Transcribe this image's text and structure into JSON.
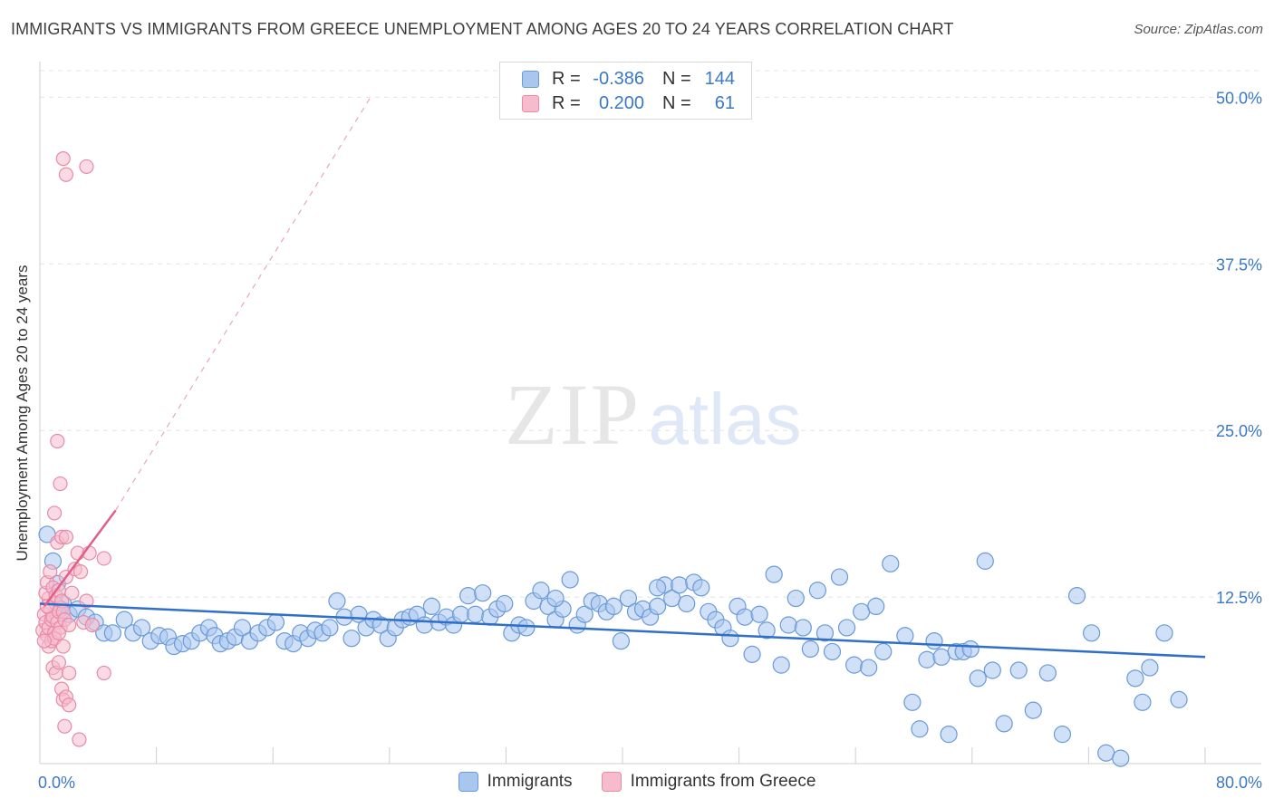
{
  "header": {
    "title": "IMMIGRANTS VS IMMIGRANTS FROM GREECE UNEMPLOYMENT AMONG AGES 20 TO 24 YEARS CORRELATION CHART",
    "source": "Source: ZipAtlas.com"
  },
  "watermark": {
    "zip": "ZIP",
    "atlas": "atlas"
  },
  "legend": {
    "rows": [
      {
        "r_label": "R =",
        "r_value": "-0.386",
        "n_label": "N =",
        "n_value": "144",
        "color": "#a9c6ef",
        "stroke": "#6a9ad8"
      },
      {
        "r_label": "R =",
        "r_value": "0.200",
        "n_label": "N =",
        "n_value": "61",
        "color": "#f6bccd",
        "stroke": "#e98aa6"
      }
    ]
  },
  "bottom_legend": {
    "items": [
      {
        "label": "Immigrants",
        "color": "#a9c6ef",
        "stroke": "#6a9ad8"
      },
      {
        "label": "Immigrants from Greece",
        "color": "#f6bccd",
        "stroke": "#e98aa6"
      }
    ]
  },
  "chart_data": {
    "type": "scatter",
    "title": "IMMIGRANTS VS IMMIGRANTS FROM GREECE UNEMPLOYMENT AMONG AGES 20 TO 24 YEARS CORRELATION CHART",
    "xlabel": "",
    "ylabel": "Unemployment Among Ages 20 to 24 years",
    "xlim": [
      0,
      80
    ],
    "ylim": [
      0,
      52
    ],
    "x_tick_labels": [
      {
        "value": 0,
        "label": "0.0%"
      },
      {
        "value": 80,
        "label": "80.0%"
      }
    ],
    "y_tick_labels": [
      {
        "value": 12.5,
        "label": "12.5%"
      },
      {
        "value": 25,
        "label": "25.0%"
      },
      {
        "value": 37.5,
        "label": "37.5%"
      },
      {
        "value": 50,
        "label": "50.0%"
      }
    ],
    "x_minor_ticks": [
      8,
      16,
      24,
      32,
      40,
      48,
      56,
      64,
      72,
      80
    ],
    "grid": true,
    "series": [
      {
        "name": "Immigrants",
        "color": "#a9c6ef",
        "stroke": "#6a9ad8",
        "trend": {
          "x": [
            0,
            80
          ],
          "y": [
            12.0,
            8.0
          ],
          "color": "#2f6fc9"
        },
        "points": [
          [
            0.5,
            17.2
          ],
          [
            0.9,
            15.2
          ],
          [
            1.2,
            13.5
          ],
          [
            1.6,
            12.0
          ],
          [
            1.4,
            11.6
          ],
          [
            2.0,
            11.2
          ],
          [
            2.6,
            11.6
          ],
          [
            3.2,
            11.0
          ],
          [
            3.8,
            10.6
          ],
          [
            4.4,
            9.8
          ],
          [
            5.0,
            9.8
          ],
          [
            5.8,
            10.8
          ],
          [
            6.4,
            9.8
          ],
          [
            7.0,
            10.2
          ],
          [
            7.6,
            9.2
          ],
          [
            8.2,
            9.6
          ],
          [
            8.8,
            9.5
          ],
          [
            9.2,
            8.8
          ],
          [
            9.8,
            9.0
          ],
          [
            10.4,
            9.2
          ],
          [
            11.0,
            9.8
          ],
          [
            11.6,
            10.2
          ],
          [
            12.0,
            9.6
          ],
          [
            12.4,
            9.0
          ],
          [
            12.9,
            9.2
          ],
          [
            13.4,
            9.5
          ],
          [
            13.9,
            10.2
          ],
          [
            14.4,
            9.2
          ],
          [
            15.0,
            9.8
          ],
          [
            15.6,
            10.2
          ],
          [
            16.2,
            10.6
          ],
          [
            16.8,
            9.2
          ],
          [
            17.4,
            9.0
          ],
          [
            17.9,
            9.8
          ],
          [
            18.4,
            9.4
          ],
          [
            18.9,
            10.0
          ],
          [
            19.4,
            9.8
          ],
          [
            19.9,
            10.2
          ],
          [
            20.4,
            12.2
          ],
          [
            20.9,
            11.0
          ],
          [
            21.4,
            9.4
          ],
          [
            21.9,
            11.2
          ],
          [
            22.4,
            10.2
          ],
          [
            22.9,
            10.8
          ],
          [
            23.4,
            10.4
          ],
          [
            23.9,
            9.4
          ],
          [
            24.4,
            10.2
          ],
          [
            24.9,
            10.8
          ],
          [
            25.4,
            11.0
          ],
          [
            25.9,
            11.2
          ],
          [
            26.4,
            10.4
          ],
          [
            26.9,
            11.8
          ],
          [
            27.4,
            10.6
          ],
          [
            27.9,
            11.0
          ],
          [
            28.4,
            10.4
          ],
          [
            28.9,
            11.2
          ],
          [
            29.4,
            12.6
          ],
          [
            29.9,
            11.2
          ],
          [
            30.4,
            12.8
          ],
          [
            30.9,
            11.0
          ],
          [
            31.4,
            11.6
          ],
          [
            31.9,
            12.0
          ],
          [
            32.4,
            9.8
          ],
          [
            32.9,
            10.4
          ],
          [
            33.4,
            10.2
          ],
          [
            33.9,
            12.2
          ],
          [
            34.4,
            13.0
          ],
          [
            34.9,
            11.8
          ],
          [
            35.4,
            10.8
          ],
          [
            35.9,
            11.6
          ],
          [
            36.4,
            13.8
          ],
          [
            36.9,
            10.4
          ],
          [
            37.4,
            11.2
          ],
          [
            37.9,
            12.2
          ],
          [
            38.4,
            12.0
          ],
          [
            38.9,
            11.4
          ],
          [
            39.4,
            11.8
          ],
          [
            39.9,
            9.2
          ],
          [
            40.4,
            12.4
          ],
          [
            40.9,
            11.4
          ],
          [
            41.4,
            11.6
          ],
          [
            41.9,
            11.0
          ],
          [
            42.4,
            11.8
          ],
          [
            42.9,
            13.4
          ],
          [
            43.4,
            12.4
          ],
          [
            43.9,
            13.4
          ],
          [
            44.4,
            12.0
          ],
          [
            44.9,
            13.6
          ],
          [
            45.4,
            13.2
          ],
          [
            45.9,
            11.4
          ],
          [
            46.4,
            10.8
          ],
          [
            46.9,
            10.2
          ],
          [
            47.4,
            9.4
          ],
          [
            47.9,
            11.8
          ],
          [
            48.4,
            11.0
          ],
          [
            48.9,
            8.2
          ],
          [
            49.4,
            11.2
          ],
          [
            49.9,
            10.0
          ],
          [
            50.4,
            14.2
          ],
          [
            50.9,
            7.4
          ],
          [
            51.4,
            10.4
          ],
          [
            51.9,
            12.4
          ],
          [
            52.4,
            10.2
          ],
          [
            52.9,
            8.6
          ],
          [
            53.4,
            13.0
          ],
          [
            53.9,
            9.8
          ],
          [
            54.4,
            8.4
          ],
          [
            54.9,
            14.0
          ],
          [
            55.4,
            10.2
          ],
          [
            55.9,
            7.4
          ],
          [
            56.4,
            11.4
          ],
          [
            56.9,
            7.2
          ],
          [
            57.4,
            11.8
          ],
          [
            57.9,
            8.4
          ],
          [
            58.4,
            15.0
          ],
          [
            59.4,
            9.6
          ],
          [
            59.9,
            4.6
          ],
          [
            60.4,
            2.6
          ],
          [
            60.9,
            7.8
          ],
          [
            61.4,
            9.2
          ],
          [
            61.9,
            8.0
          ],
          [
            62.4,
            2.2
          ],
          [
            62.9,
            8.4
          ],
          [
            63.4,
            8.4
          ],
          [
            64.4,
            6.4
          ],
          [
            64.9,
            15.2
          ],
          [
            65.4,
            7.0
          ],
          [
            66.2,
            3.0
          ],
          [
            67.2,
            7.0
          ],
          [
            68.2,
            4.0
          ],
          [
            69.2,
            6.8
          ],
          [
            70.2,
            2.2
          ],
          [
            71.2,
            12.6
          ],
          [
            72.2,
            9.8
          ],
          [
            73.2,
            0.8
          ],
          [
            74.2,
            0.4
          ],
          [
            75.2,
            6.4
          ],
          [
            75.7,
            4.6
          ],
          [
            76.2,
            7.2
          ],
          [
            77.2,
            9.8
          ],
          [
            78.2,
            4.8
          ],
          [
            63.9,
            8.6
          ],
          [
            42.4,
            13.2
          ],
          [
            35.4,
            12.4
          ]
        ]
      },
      {
        "name": "Immigrants from Greece",
        "color": "#f6bccd",
        "stroke": "#e98aa6",
        "trend": {
          "x": [
            0.3,
            5.2
          ],
          "y": [
            11.8,
            19.0
          ],
          "color": "#e0608a",
          "extend_to": [
            22.7,
            50.0
          ]
        },
        "points": [
          [
            0.2,
            10.0
          ],
          [
            0.3,
            11.2
          ],
          [
            0.4,
            10.6
          ],
          [
            0.5,
            9.6
          ],
          [
            0.6,
            12.4
          ],
          [
            0.6,
            10.2
          ],
          [
            0.7,
            11.6
          ],
          [
            0.8,
            10.8
          ],
          [
            0.9,
            11.0
          ],
          [
            1.0,
            9.8
          ],
          [
            1.1,
            12.0
          ],
          [
            1.2,
            10.6
          ],
          [
            1.3,
            11.4
          ],
          [
            1.4,
            10.2
          ],
          [
            0.4,
            12.8
          ],
          [
            0.5,
            13.6
          ],
          [
            0.7,
            14.4
          ],
          [
            0.9,
            13.2
          ],
          [
            1.1,
            12.6
          ],
          [
            1.3,
            13.0
          ],
          [
            1.5,
            12.2
          ],
          [
            1.6,
            11.4
          ],
          [
            1.7,
            10.8
          ],
          [
            1.8,
            14.0
          ],
          [
            2.0,
            10.4
          ],
          [
            2.2,
            12.8
          ],
          [
            2.4,
            14.6
          ],
          [
            2.6,
            15.8
          ],
          [
            2.8,
            14.4
          ],
          [
            3.0,
            10.6
          ],
          [
            3.2,
            12.2
          ],
          [
            3.4,
            15.8
          ],
          [
            3.6,
            10.4
          ],
          [
            4.4,
            15.4
          ],
          [
            1.2,
            16.6
          ],
          [
            1.5,
            17.0
          ],
          [
            1.8,
            17.0
          ],
          [
            1.0,
            18.8
          ],
          [
            1.4,
            21.0
          ],
          [
            1.2,
            24.2
          ],
          [
            1.6,
            45.4
          ],
          [
            1.8,
            44.2
          ],
          [
            3.2,
            44.8
          ],
          [
            0.9,
            7.2
          ],
          [
            1.1,
            6.8
          ],
          [
            1.3,
            7.6
          ],
          [
            1.5,
            5.6
          ],
          [
            1.6,
            4.8
          ],
          [
            1.8,
            5.0
          ],
          [
            2.0,
            4.4
          ],
          [
            1.7,
            2.8
          ],
          [
            2.7,
            1.8
          ],
          [
            2.0,
            6.8
          ],
          [
            4.4,
            6.8
          ],
          [
            0.6,
            8.8
          ],
          [
            0.8,
            9.2
          ],
          [
            1.0,
            9.4
          ],
          [
            1.6,
            8.8
          ],
          [
            1.3,
            9.8
          ],
          [
            0.5,
            11.8
          ],
          [
            0.3,
            9.2
          ]
        ]
      }
    ]
  }
}
